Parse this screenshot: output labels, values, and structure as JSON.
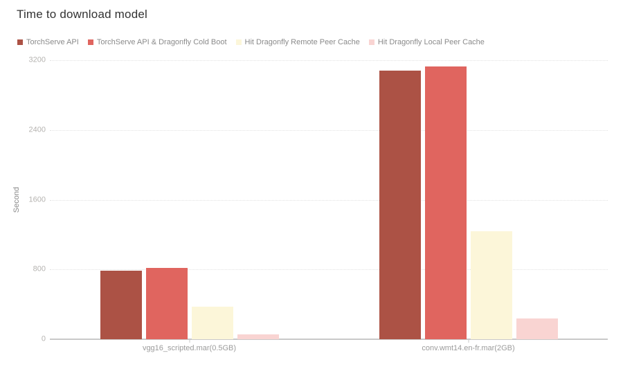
{
  "chart_data": {
    "type": "bar",
    "title": "Time to download model",
    "ylabel": "Second",
    "xlabel": "",
    "ylim": [
      0,
      3200
    ],
    "yticks": [
      0,
      800,
      1600,
      2400,
      3200
    ],
    "grid": true,
    "legend_position": "top",
    "categories": [
      "vgg16_scripted.mar(0.5GB)",
      "conv.wmt14.en-fr.mar(2GB)"
    ],
    "series": [
      {
        "name": "TorchServe API",
        "color": "#AC5245",
        "values": [
          790,
          3080
        ]
      },
      {
        "name": "TorchServe API & Dragonfly Cold Boot",
        "color": "#E0655F",
        "values": [
          820,
          3130
        ]
      },
      {
        "name": "Hit Dragonfly Remote Peer Cache",
        "color": "#FCF6D9",
        "values": [
          370,
          1240
        ]
      },
      {
        "name": "Hit Dragonfly Local Peer Cache",
        "color": "#F9D4D2",
        "values": [
          57,
          240
        ]
      }
    ]
  }
}
